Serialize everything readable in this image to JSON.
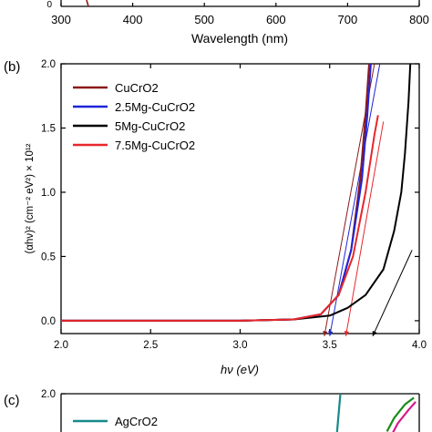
{
  "top_panel": {
    "xlabel": "Wavelength (nm)",
    "x_ticks": [
      "300",
      "400",
      "500",
      "600",
      "700",
      "800"
    ],
    "y_tick_partial": "0",
    "xlim": [
      300,
      800
    ]
  },
  "chart_data": [
    {
      "panel": "b",
      "panel_label": "(b)",
      "type": "line",
      "xlabel": "hν (eV)",
      "ylabel": "(αhν)² (cm⁻² eV²) × 10¹²",
      "xlim": [
        2.0,
        4.0
      ],
      "ylim": [
        -0.1,
        2.0
      ],
      "x_ticks": [
        "2.0",
        "2.5",
        "3.0",
        "3.5",
        "4.0"
      ],
      "y_ticks": [
        "0.0",
        "0.5",
        "1.0",
        "1.5",
        "2.0"
      ],
      "legend_position": "top-left",
      "series": [
        {
          "name": "CuCrO2",
          "color": "#8b1a1a",
          "x": [
            2.0,
            3.0,
            3.3,
            3.45,
            3.55,
            3.62,
            3.67,
            3.7,
            3.72
          ],
          "y": [
            0.0,
            0.0,
            0.01,
            0.05,
            0.2,
            0.55,
            1.1,
            1.6,
            2.0
          ]
        },
        {
          "name": "2.5Mg-CuCrO2",
          "color": "#1f24d8",
          "x": [
            2.0,
            3.0,
            3.3,
            3.45,
            3.55,
            3.62,
            3.68,
            3.71,
            3.73
          ],
          "y": [
            0.0,
            0.0,
            0.01,
            0.05,
            0.2,
            0.55,
            1.1,
            1.6,
            2.0
          ]
        },
        {
          "name": "5Mg-CuCrO2",
          "color": "#000000",
          "x": [
            2.0,
            3.0,
            3.3,
            3.5,
            3.6,
            3.7,
            3.8,
            3.86,
            3.9,
            3.92,
            3.94,
            3.95
          ],
          "y": [
            0.0,
            0.0,
            0.01,
            0.04,
            0.1,
            0.2,
            0.4,
            0.7,
            1.0,
            1.3,
            1.7,
            2.0
          ]
        },
        {
          "name": "7.5Mg-CuCrO2",
          "color": "#e8262a",
          "x": [
            2.0,
            3.0,
            3.3,
            3.45,
            3.55,
            3.63,
            3.7,
            3.75,
            3.77
          ],
          "y": [
            0.0,
            0.0,
            0.01,
            0.05,
            0.2,
            0.5,
            1.0,
            1.45,
            1.6
          ]
        }
      ],
      "fit_lines": [
        {
          "color": "#8b1a1a",
          "x": [
            3.47,
            3.75
          ],
          "y": [
            -0.12,
            2.0
          ]
        },
        {
          "color": "#1f24d8",
          "x": [
            3.5,
            3.78
          ],
          "y": [
            -0.12,
            2.0
          ]
        },
        {
          "color": "#e8262a",
          "x": [
            3.59,
            3.8
          ],
          "y": [
            -0.12,
            1.55
          ]
        },
        {
          "color": "#000000",
          "x": [
            3.74,
            3.96
          ],
          "y": [
            -0.12,
            0.55
          ]
        }
      ]
    },
    {
      "panel": "c",
      "panel_label": "(c)",
      "type": "line",
      "ylim": [
        0,
        2.0
      ],
      "y_ticks": [
        "2.0"
      ],
      "xlim": [
        2.0,
        4.0
      ],
      "legend_position": "top-left",
      "series": [
        {
          "name": "AgCrO2",
          "color": "#178a8a",
          "x": [
            3.54,
            3.56
          ],
          "y": [
            1.7,
            2.0
          ]
        },
        {
          "name": "",
          "color": "#1a8a1a",
          "x": [
            3.82,
            3.86,
            3.92,
            3.97
          ],
          "y": [
            1.72,
            1.82,
            1.92,
            1.97
          ]
        },
        {
          "name": "",
          "color": "#d61a8a",
          "x": [
            3.84,
            3.88,
            3.94,
            3.98
          ],
          "y": [
            1.68,
            1.78,
            1.88,
            1.94
          ]
        }
      ]
    }
  ]
}
